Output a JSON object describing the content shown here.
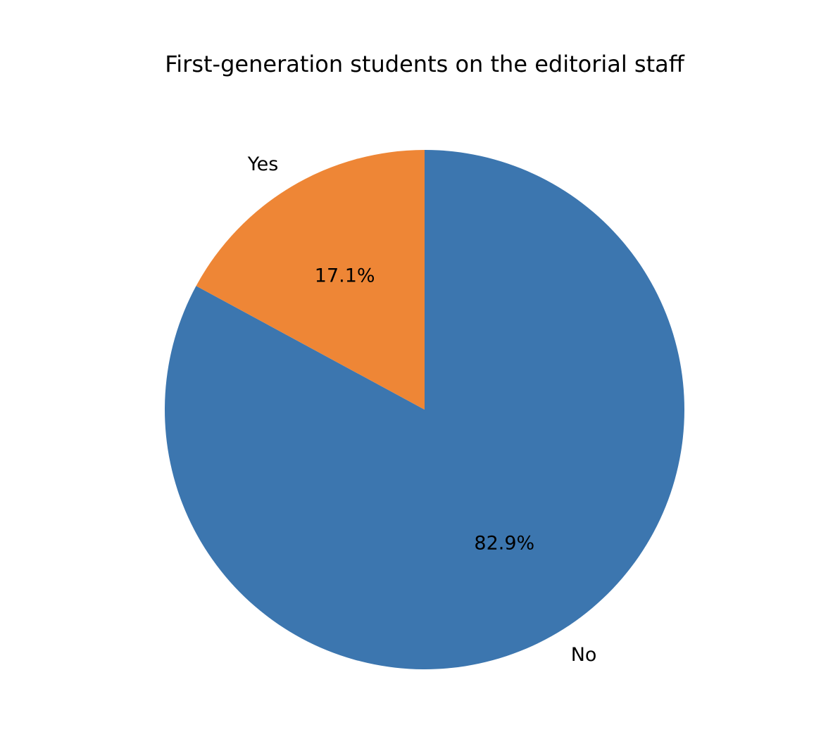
{
  "chart_data": {
    "type": "pie",
    "title": "First-generation students on the editorial staff",
    "slices": [
      {
        "label": "No",
        "value": 82.9,
        "pct_label": "82.9%",
        "color": "#3c76af"
      },
      {
        "label": "Yes",
        "value": 17.1,
        "pct_label": "17.1%",
        "color": "#ee8636"
      }
    ],
    "start_angle_deg": 90,
    "direction": "clockwise",
    "legend": "none"
  }
}
